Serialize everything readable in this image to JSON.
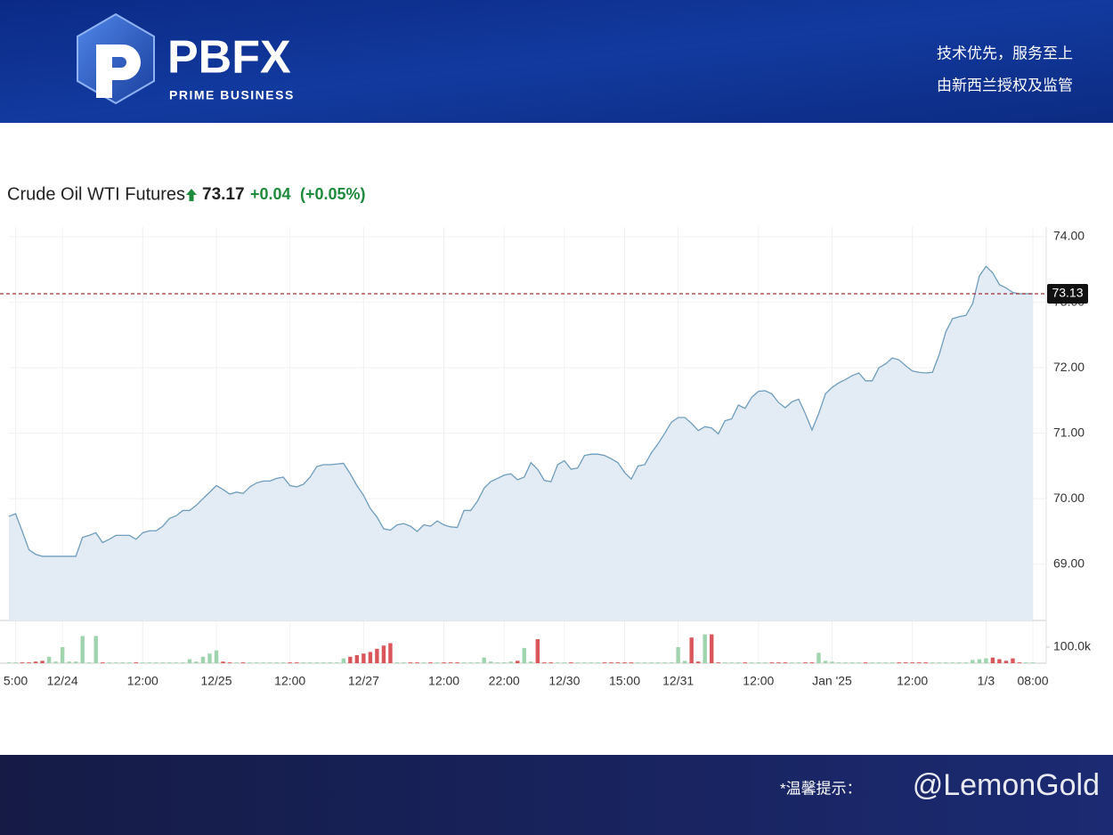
{
  "header": {
    "logo": "PBFX",
    "tagline": "PRIME BUSINESS",
    "slogan": "技术优先，服务至上",
    "license": "由新西兰授权及监管"
  },
  "chart_data": {
    "type": "line",
    "title": "Crude Oil WTI Futures",
    "price": "73.17",
    "change": "+0.04",
    "change_percent": "(+0.05%)",
    "categories": [
      null,
      "5:00",
      null,
      null,
      null,
      null,
      null,
      null,
      "12/24",
      null,
      null,
      null,
      null,
      null,
      null,
      null,
      null,
      null,
      null,
      null,
      "12:00",
      null,
      null,
      null,
      null,
      null,
      null,
      null,
      null,
      null,
      null,
      "12/25",
      null,
      null,
      null,
      null,
      null,
      null,
      null,
      null,
      null,
      null,
      "12:00",
      null,
      null,
      null,
      null,
      null,
      null,
      null,
      null,
      null,
      null,
      "12/27",
      null,
      null,
      null,
      null,
      null,
      null,
      null,
      null,
      null,
      null,
      null,
      "12:00",
      null,
      null,
      null,
      null,
      null,
      null,
      null,
      null,
      "22:00",
      null,
      null,
      null,
      null,
      null,
      null,
      null,
      null,
      "12/30",
      null,
      null,
      null,
      null,
      null,
      null,
      null,
      null,
      "15:00",
      null,
      null,
      null,
      null,
      null,
      null,
      null,
      "12/31",
      null,
      null,
      null,
      null,
      null,
      null,
      null,
      null,
      null,
      null,
      null,
      "12:00",
      null,
      null,
      null,
      null,
      null,
      null,
      null,
      null,
      null,
      null,
      "Jan '25",
      null,
      null,
      null,
      null,
      null,
      null,
      null,
      null,
      null,
      null,
      null,
      "12:00",
      null,
      null,
      null,
      null,
      null,
      null,
      null,
      null,
      null,
      null,
      "1/3",
      null,
      null,
      null,
      null,
      null,
      null,
      "08:00"
    ],
    "values": [
      69.73,
      69.77,
      69.5,
      69.22,
      69.15,
      69.12,
      69.12,
      69.12,
      69.12,
      69.12,
      69.12,
      69.41,
      69.44,
      69.48,
      69.33,
      69.38,
      69.44,
      69.44,
      69.44,
      69.38,
      69.48,
      69.51,
      69.51,
      69.58,
      69.7,
      69.74,
      69.82,
      69.82,
      69.9,
      70.0,
      70.1,
      70.2,
      70.14,
      70.07,
      70.1,
      70.08,
      70.18,
      70.24,
      70.27,
      70.27,
      70.31,
      70.33,
      70.2,
      70.18,
      70.22,
      70.33,
      70.49,
      70.52,
      70.52,
      70.53,
      70.54,
      70.38,
      70.2,
      70.05,
      69.85,
      69.72,
      69.54,
      69.52,
      69.6,
      69.62,
      69.58,
      69.5,
      69.6,
      69.58,
      69.66,
      69.6,
      69.57,
      69.56,
      69.82,
      69.82,
      69.96,
      70.16,
      70.26,
      70.31,
      70.36,
      70.38,
      70.29,
      70.33,
      70.55,
      70.45,
      70.28,
      70.26,
      70.52,
      70.58,
      70.45,
      70.47,
      70.66,
      70.68,
      70.68,
      70.66,
      70.61,
      70.55,
      70.4,
      70.3,
      70.5,
      70.52,
      70.7,
      70.84,
      71.0,
      71.17,
      71.24,
      71.24,
      71.15,
      71.04,
      71.1,
      71.08,
      70.99,
      71.19,
      71.22,
      71.43,
      71.38,
      71.55,
      71.64,
      71.65,
      71.6,
      71.47,
      71.39,
      71.48,
      71.52,
      71.3,
      71.05,
      71.3,
      71.6,
      71.7,
      71.77,
      71.82,
      71.88,
      71.92,
      71.8,
      71.8,
      72.0,
      72.06,
      72.15,
      72.12,
      72.03,
      71.95,
      71.93,
      71.92,
      71.93,
      72.2,
      72.55,
      72.75,
      72.78,
      72.8,
      72.98,
      73.4,
      73.55,
      73.45,
      73.27,
      73.22,
      73.15,
      73.13,
      73.13,
      73.13
    ],
    "color": "#6f9dbd",
    "fill": "#e3ecf5",
    "last_price": 73.13,
    "last_price_color": "#a03030",
    "ylim": [
      68.14,
      74.15
    ],
    "yticks": [
      {
        "value": 69,
        "label": "69.00"
      },
      {
        "value": 70,
        "label": "70.00"
      },
      {
        "value": 71,
        "label": "71.00"
      },
      {
        "value": 72,
        "label": "72.00"
      },
      {
        "value": 73,
        "label": "73.00"
      },
      {
        "value": 74,
        "label": "74.00"
      }
    ],
    "grid": true,
    "volume": {
      "values": [
        5000,
        5000,
        5000,
        5000,
        10000,
        15000,
        40000,
        10000,
        100000,
        10000,
        10000,
        170000,
        5000,
        170000,
        5000,
        5000,
        5000,
        5000,
        5000,
        5000,
        5000,
        5000,
        5000,
        5000,
        5000,
        5000,
        5000,
        25000,
        10000,
        40000,
        60000,
        80000,
        10000,
        5000,
        5000,
        5000,
        5000,
        5000,
        5000,
        5000,
        5000,
        5000,
        5000,
        5000,
        5000,
        5000,
        5000,
        5000,
        5000,
        5000,
        30000,
        40000,
        50000,
        60000,
        70000,
        90000,
        110000,
        125000,
        5000,
        5000,
        5000,
        5000,
        5000,
        5000,
        5000,
        5000,
        5000,
        5000,
        5000,
        5000,
        5000,
        35000,
        10000,
        5000,
        5000,
        10000,
        15000,
        95000,
        10000,
        150000,
        5000,
        5000,
        5000,
        5000,
        5000,
        5000,
        5000,
        5000,
        5000,
        5000,
        5000,
        5000,
        5000,
        5000,
        5000,
        5000,
        5000,
        5000,
        5000,
        5000,
        100000,
        15000,
        160000,
        10000,
        180000,
        180000,
        5000,
        5000,
        5000,
        5000,
        5000,
        5000,
        5000,
        5000,
        5000,
        5000,
        5000,
        5000,
        5000,
        5000,
        5000,
        65000,
        15000,
        10000,
        5000,
        5000,
        5000,
        5000,
        5000,
        5000,
        5000,
        5000,
        5000,
        5000,
        5000,
        5000,
        5000,
        5000,
        5000,
        5000,
        5000,
        5000,
        5000,
        5000,
        20000,
        25000,
        30000,
        35000,
        25000,
        15000,
        30000,
        5000,
        5000,
        5000
      ],
      "up_color": "#9fd4ae",
      "down_color": "#d9575a",
      "ylim": [
        0,
        250000
      ],
      "yticks": [
        {
          "value": 100000,
          "label": "100.0k"
        }
      ]
    }
  },
  "footer": {
    "notice": "*温馨提示：",
    "watermark": "@LemonGold"
  }
}
